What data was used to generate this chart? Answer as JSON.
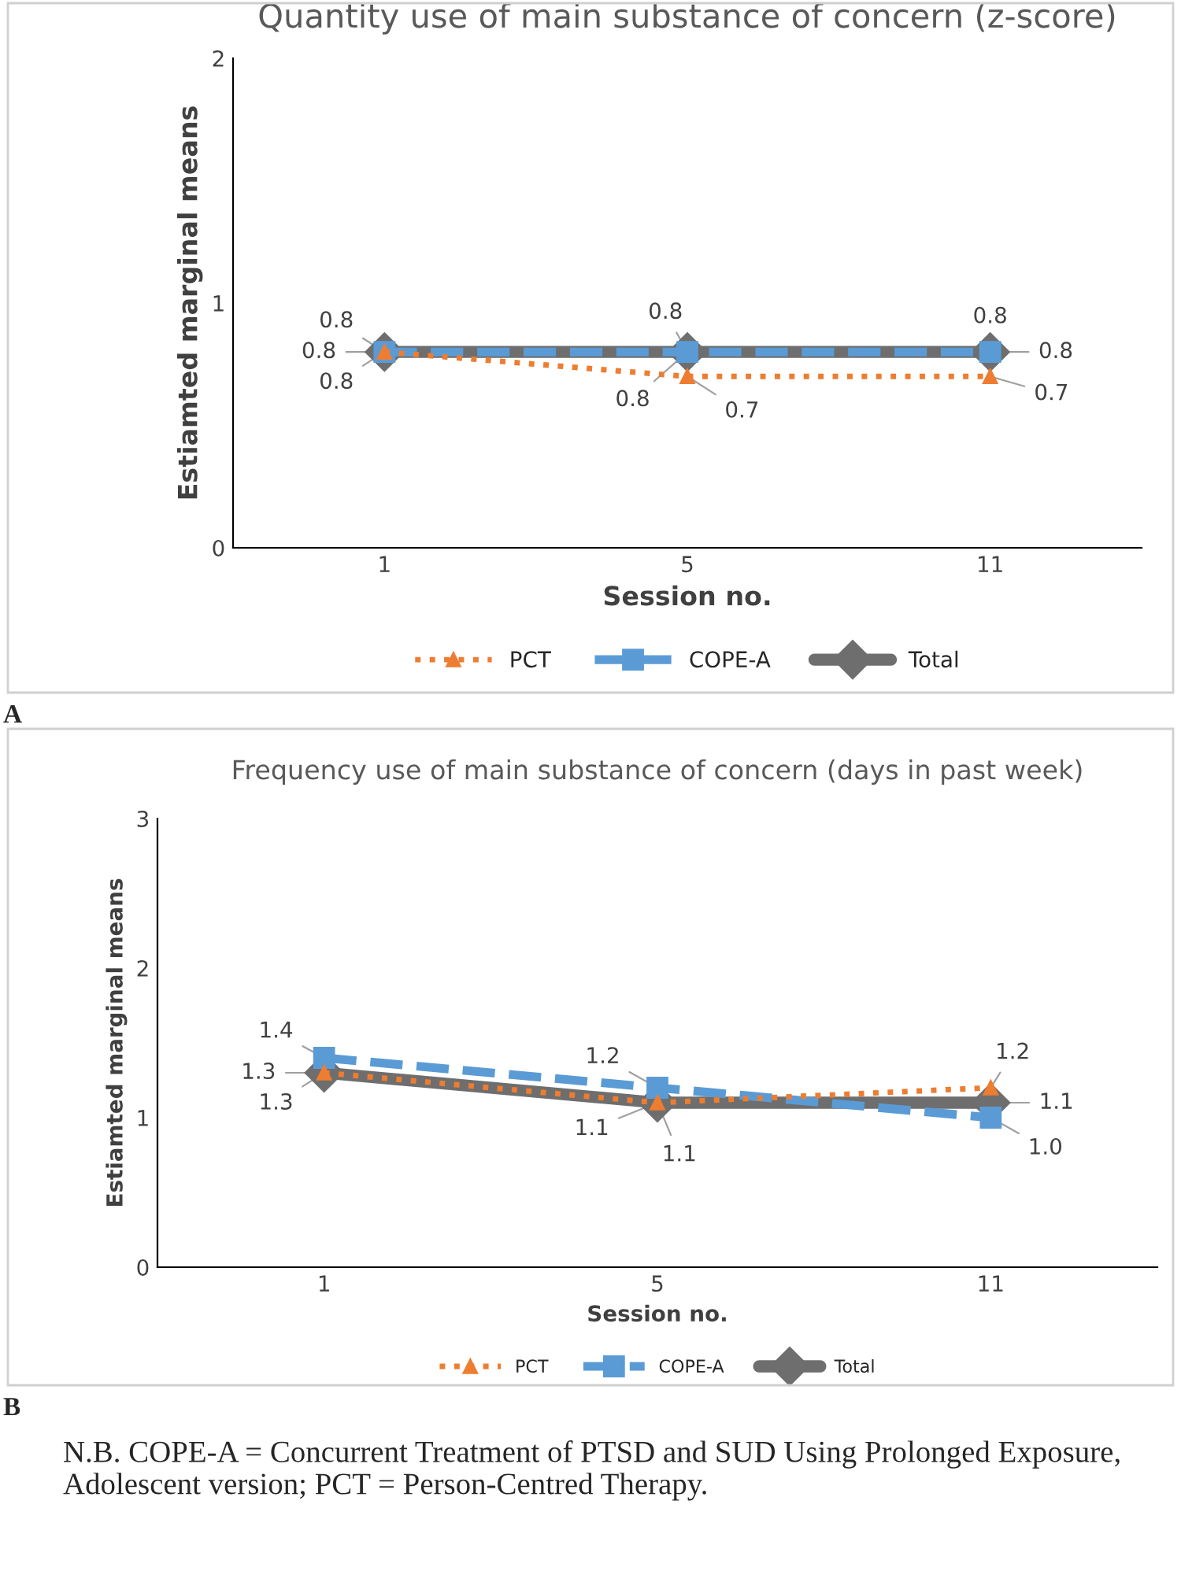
{
  "chart_data": [
    {
      "type": "line",
      "title": "Quantity use of main substance of concern (z-score)",
      "xlabel": "Session no.",
      "ylabel": "Estiamted marginal means",
      "categories": [
        "1",
        "5",
        "11"
      ],
      "ylim": [
        0,
        2
      ],
      "yticks": [
        0,
        1,
        2
      ],
      "grid": false,
      "legend": "bottom",
      "data_labels": true,
      "annotations": [
        "A"
      ],
      "series": [
        {
          "name": "PCT",
          "color": "#ed7d31",
          "values": [
            0.8,
            0.7,
            0.7
          ],
          "marker": "triangle",
          "line_style": "dotted"
        },
        {
          "name": "COPE-A",
          "color": "#5b9bd5",
          "values": [
            0.8,
            0.8,
            0.8
          ],
          "marker": "square",
          "line_style": "dashed"
        },
        {
          "name": "Total",
          "color": "#6e6e6e",
          "values": [
            0.8,
            0.8,
            0.8
          ],
          "marker": "diamond",
          "line_style": "solid"
        }
      ]
    },
    {
      "type": "line",
      "title": "Frequency use of main substance of concern (days in past week)",
      "xlabel": "Session no.",
      "ylabel": "Estiamted marginal means",
      "categories": [
        "1",
        "5",
        "11"
      ],
      "ylim": [
        0,
        3
      ],
      "yticks": [
        0,
        1,
        2,
        3
      ],
      "grid": false,
      "legend": "bottom",
      "data_labels": true,
      "annotations": [
        "B",
        "N.B. COPE-A = Concurrent Treatment of PTSD and SUD Using Prolonged Exposure, Adolescent version; PCT = Person-Centred Therapy."
      ],
      "series": [
        {
          "name": "PCT",
          "color": "#ed7d31",
          "values": [
            1.3,
            1.1,
            1.2
          ],
          "marker": "triangle",
          "line_style": "dotted"
        },
        {
          "name": "COPE-A",
          "color": "#5b9bd5",
          "values": [
            1.4,
            1.2,
            1.0
          ],
          "value_labels": [
            "1.4",
            "1.2",
            "1.0"
          ],
          "marker": "square",
          "line_style": "dashed"
        },
        {
          "name": "Total",
          "color": "#6e6e6e",
          "values": [
            1.3,
            1.1,
            1.1
          ],
          "marker": "diamond",
          "line_style": "solid"
        }
      ]
    }
  ]
}
